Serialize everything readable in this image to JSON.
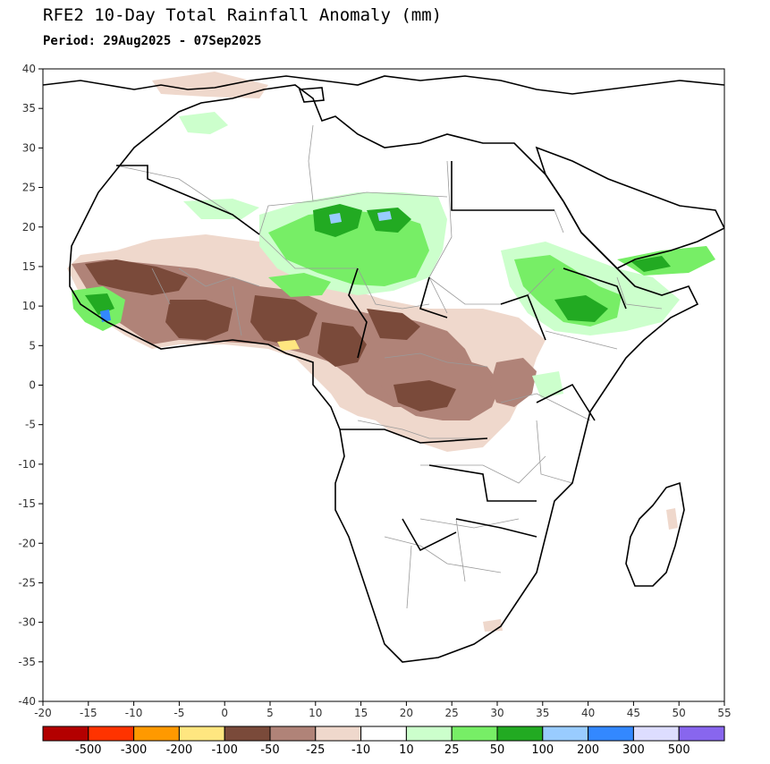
{
  "title": "RFE2 10-Day Total Rainfall Anomaly (mm)",
  "period": "Period: 29Aug2025 - 07Sep2025",
  "axes": {
    "x_ticks": [
      -20,
      -15,
      -10,
      -5,
      0,
      5,
      10,
      15,
      20,
      25,
      30,
      35,
      40,
      45,
      50,
      55
    ],
    "y_ticks": [
      40,
      35,
      30,
      25,
      20,
      15,
      10,
      5,
      0,
      -5,
      -10,
      -15,
      -20,
      -25,
      -30,
      -35,
      -40
    ],
    "x_range": [
      -20,
      55
    ],
    "y_range": [
      -40,
      40
    ]
  },
  "legend": {
    "colors": [
      "#b30000",
      "#ff3300",
      "#ff9900",
      "#ffe680",
      "#7a4a3a",
      "#b08378",
      "#efd8cc",
      "#ffffff",
      "#ccffcc",
      "#77ee66",
      "#22aa22",
      "#99ccff",
      "#3388ff",
      "#ddddff",
      "#8866ee"
    ],
    "labels": [
      "-500",
      "-300",
      "-200",
      "-100",
      "-50",
      "-25",
      "-10",
      "10",
      "25",
      "50",
      "100",
      "200",
      "300",
      "500"
    ]
  },
  "colors": {
    "land_outline": "#000000",
    "border": "#999999",
    "deficit_strong": "#7a4a3a",
    "deficit_mid": "#b08378",
    "deficit_light": "#efd8cc",
    "surplus_light": "#ccffcc",
    "surplus_mid": "#77ee66",
    "surplus_strong": "#22aa22",
    "surplus_blue": "#99ccff"
  }
}
